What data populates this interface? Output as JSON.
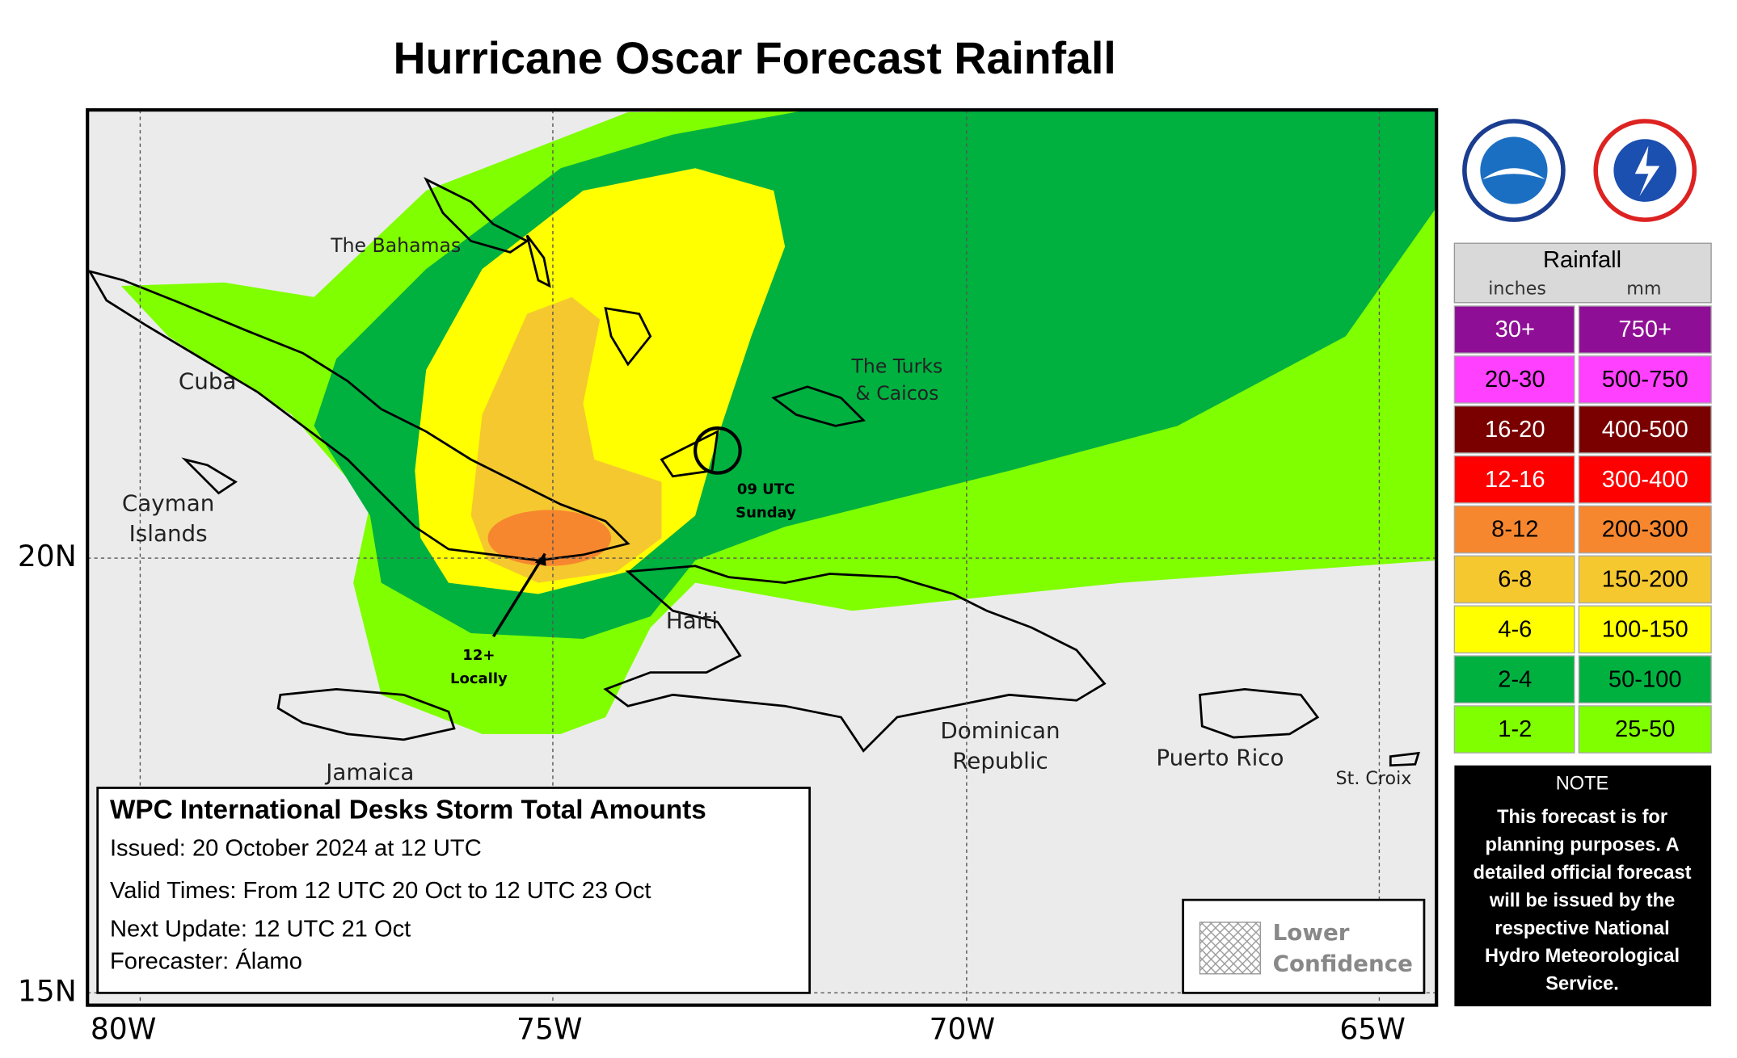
{
  "title": "Hurricane Oscar Forecast Rainfall",
  "axes": {
    "longitude_labels": [
      "80W",
      "75W",
      "70W",
      "65W"
    ],
    "latitude_labels": [
      "20N",
      "15N"
    ]
  },
  "places": [
    {
      "lines": [
        "The Bahamas"
      ]
    },
    {
      "lines": [
        "Cuba"
      ]
    },
    {
      "lines": [
        "Cayman",
        "Islands"
      ]
    },
    {
      "lines": [
        "The Turks",
        "& Caicos"
      ]
    },
    {
      "lines": [
        "Haiti"
      ]
    },
    {
      "lines": [
        "Dominican",
        "Republic"
      ]
    },
    {
      "lines": [
        "Puerto Rico"
      ]
    },
    {
      "lines": [
        "Jamaica"
      ]
    },
    {
      "lines": [
        "St. Croix"
      ]
    }
  ],
  "annotations": [
    {
      "lines": [
        "09 UTC",
        "Sunday"
      ]
    },
    {
      "lines": [
        "12+",
        "Locally"
      ]
    }
  ],
  "legend": {
    "title": "Rainfall",
    "units": [
      "inches",
      "mm"
    ],
    "rows": [
      {
        "inches": "30+",
        "mm": "750+",
        "color": "#8e0f95"
      },
      {
        "inches": "20-30",
        "mm": "500-750",
        "color": "#ff40ff"
      },
      {
        "inches": "16-20",
        "mm": "400-500",
        "color": "#7a0000"
      },
      {
        "inches": "12-16",
        "mm": "300-400",
        "color": "#ff0000"
      },
      {
        "inches": "8-12",
        "mm": "200-300",
        "color": "#f7872e"
      },
      {
        "inches": "6-8",
        "mm": "150-200",
        "color": "#f5c830"
      },
      {
        "inches": "4-6",
        "mm": "100-150",
        "color": "#ffff00"
      },
      {
        "inches": "2-4",
        "mm": "50-100",
        "color": "#00b140"
      },
      {
        "inches": "1-2",
        "mm": "25-50",
        "color": "#80ff00"
      }
    ]
  },
  "info_box": {
    "title": "WPC International Desks Storm Total Amounts",
    "lines": [
      "Issued:  20 October 2024 at 12 UTC",
      "Valid Times:  From 12 UTC 20 Oct  to  12 UTC 23 Oct",
      "Next Update: 12 UTC 21 Oct",
      "Forecaster:  Álamo"
    ]
  },
  "confidence": {
    "lines": [
      "Lower",
      "Confidence"
    ]
  },
  "note": {
    "title": "NOTE",
    "lines": [
      "This forecast is for",
      "planning purposes. A",
      "detailed official forecast",
      "will be issued by the",
      "respective National",
      "Hydro Meteorological",
      "Service."
    ]
  }
}
